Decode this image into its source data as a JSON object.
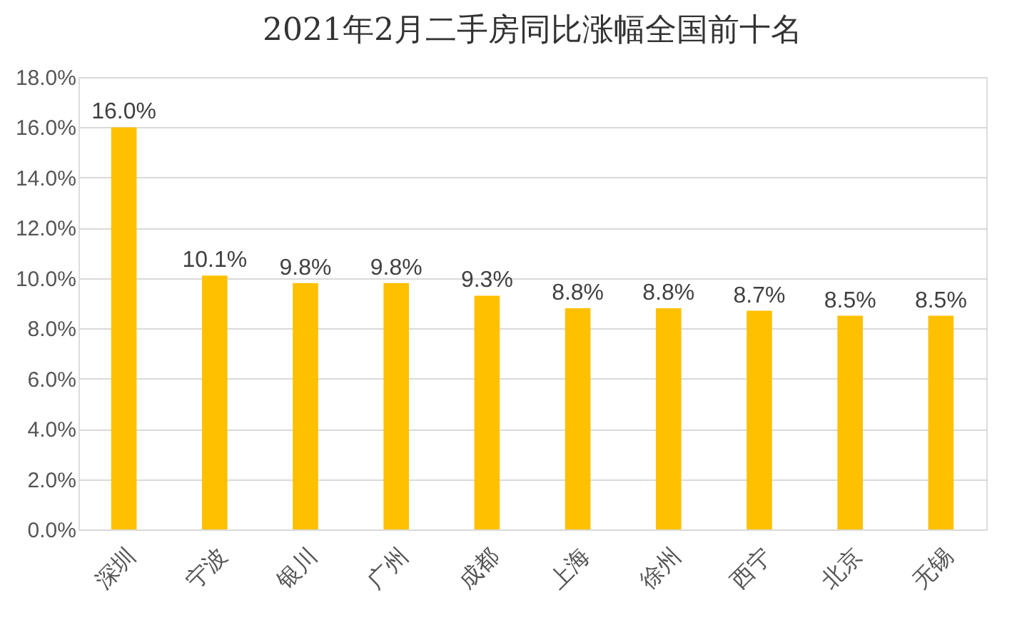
{
  "chart_data": {
    "type": "bar",
    "title": "2021年2月二手房同比涨幅全国前十名",
    "categories": [
      "深圳",
      "宁波",
      "银川",
      "广州",
      "成都",
      "上海",
      "徐州",
      "西宁",
      "北京",
      "无锡"
    ],
    "values": [
      16.0,
      10.1,
      9.8,
      9.8,
      9.3,
      8.8,
      8.8,
      8.7,
      8.5,
      8.5
    ],
    "value_labels": [
      "16.0%",
      "10.1%",
      "9.8%",
      "9.8%",
      "9.3%",
      "8.8%",
      "8.8%",
      "8.7%",
      "8.5%",
      "8.5%"
    ],
    "color": "#ffc000",
    "ylim": [
      0,
      18
    ],
    "yticks": [
      {
        "value": 0,
        "label": "0.0%"
      },
      {
        "value": 2,
        "label": "2.0%"
      },
      {
        "value": 4,
        "label": "4.0%"
      },
      {
        "value": 6,
        "label": "6.0%"
      },
      {
        "value": 8,
        "label": "8.0%"
      },
      {
        "value": 10,
        "label": "10.0%"
      },
      {
        "value": 12,
        "label": "12.0%"
      },
      {
        "value": 14,
        "label": "14.0%"
      },
      {
        "value": 16,
        "label": "16.0%"
      },
      {
        "value": 18,
        "label": "18.0%"
      }
    ],
    "grid": "y"
  }
}
